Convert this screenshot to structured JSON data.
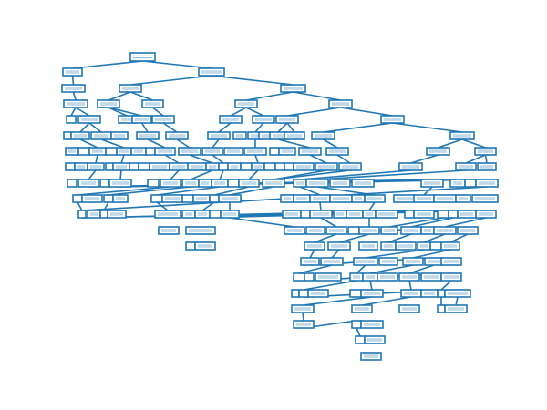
{
  "diagram": {
    "type": "decision-tree",
    "node_text_legible": false,
    "colors": {
      "node_border": "#1f77b4",
      "edge": "#1f77b4",
      "node_fill": "#ffffff",
      "background": "#ffffff"
    }
  }
}
